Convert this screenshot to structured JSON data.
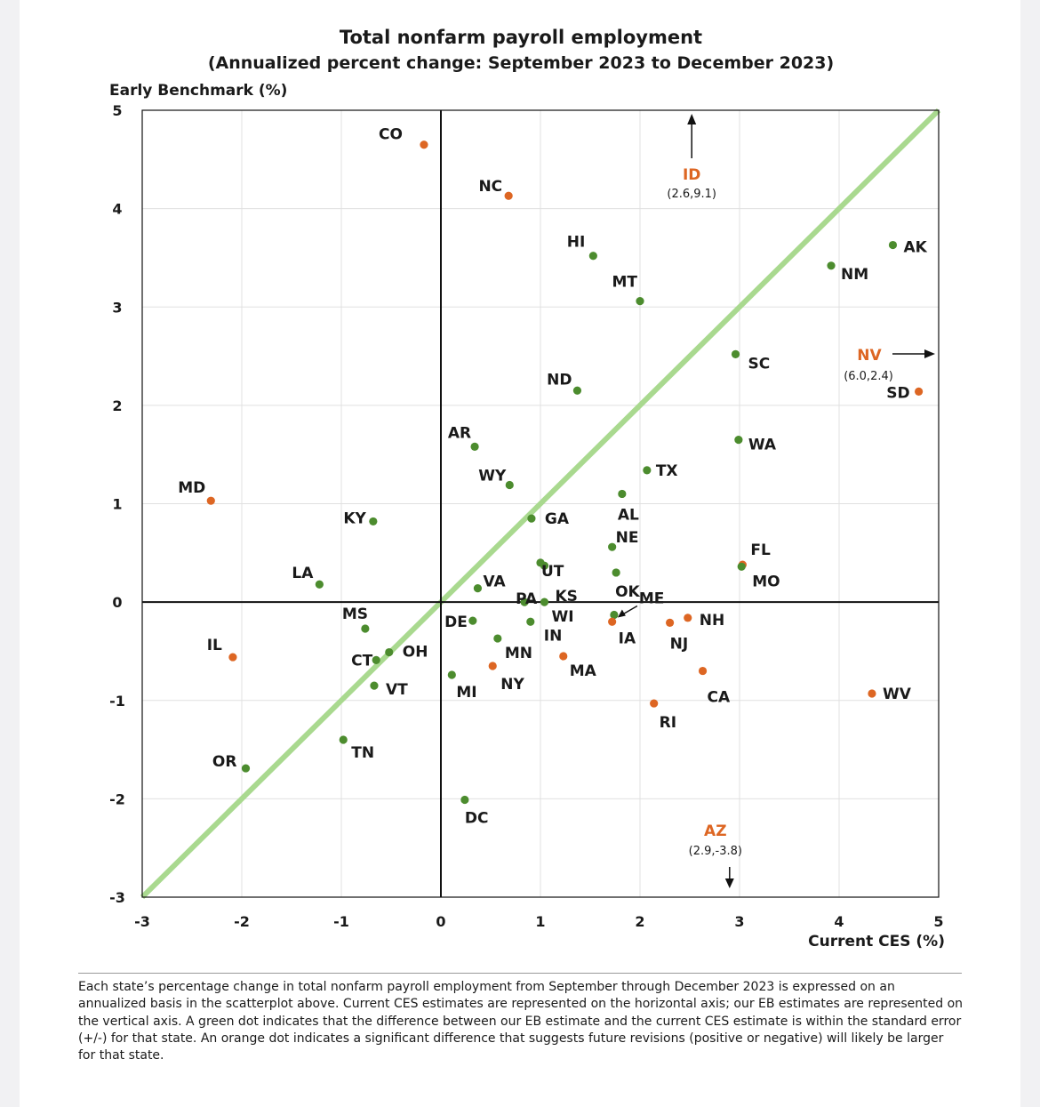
{
  "colors": {
    "green": "#4c8c2e",
    "orange": "#dd6623",
    "line45": "#a9d98f",
    "grid": "#e0e0e0",
    "axis": "#111111"
  },
  "chart_data": {
    "type": "scatter",
    "title": "Total nonfarm payroll employment",
    "subtitle": "(Annualized percent change: September 2023 to December 2023)",
    "xlabel": "Current CES (%)",
    "ylabel": "Early Benchmark (%)",
    "xlim": [
      -3,
      5
    ],
    "ylim": [
      -3,
      5
    ],
    "xticks": [
      "-3",
      "-2",
      "-1",
      "0",
      "1",
      "2",
      "3",
      "4",
      "5"
    ],
    "yticks": [
      "5",
      "4",
      "3",
      "2",
      "1",
      "0",
      "-1",
      "-2",
      "-3"
    ],
    "grid": true,
    "reference_line": "45-degree line (y = x)",
    "points": [
      {
        "label": "CO",
        "x": -0.17,
        "y": 4.65,
        "color": "orange"
      },
      {
        "label": "NC",
        "x": 0.68,
        "y": 4.13,
        "color": "orange"
      },
      {
        "label": "HI",
        "x": 1.53,
        "y": 3.52,
        "color": "green"
      },
      {
        "label": "MT",
        "x": 2.0,
        "y": 3.06,
        "color": "green"
      },
      {
        "label": "AK",
        "x": 4.54,
        "y": 3.63,
        "color": "green"
      },
      {
        "label": "NM",
        "x": 3.92,
        "y": 3.42,
        "color": "green"
      },
      {
        "label": "SC",
        "x": 2.96,
        "y": 2.52,
        "color": "green"
      },
      {
        "label": "SD",
        "x": 4.8,
        "y": 2.14,
        "color": "orange"
      },
      {
        "label": "ND",
        "x": 1.37,
        "y": 2.15,
        "color": "green"
      },
      {
        "label": "AR",
        "x": 0.34,
        "y": 1.58,
        "color": "green"
      },
      {
        "label": "WA",
        "x": 2.99,
        "y": 1.65,
        "color": "green"
      },
      {
        "label": "TX",
        "x": 2.07,
        "y": 1.34,
        "color": "green"
      },
      {
        "label": "WY",
        "x": 0.69,
        "y": 1.19,
        "color": "green"
      },
      {
        "label": "AL",
        "x": 1.82,
        "y": 1.1,
        "color": "green"
      },
      {
        "label": "MD",
        "x": -2.31,
        "y": 1.03,
        "color": "orange"
      },
      {
        "label": "GA",
        "x": 0.91,
        "y": 0.85,
        "color": "green"
      },
      {
        "label": "KY",
        "x": -0.68,
        "y": 0.82,
        "color": "green"
      },
      {
        "label": "NE",
        "x": 1.72,
        "y": 0.56,
        "color": "green"
      },
      {
        "label": "UT",
        "x": 1.0,
        "y": 0.4,
        "color": "green"
      },
      {
        "label": "KS",
        "x": 1.04,
        "y": 0.37,
        "color": "green"
      },
      {
        "label": "FL",
        "x": 3.03,
        "y": 0.38,
        "color": "orange"
      },
      {
        "label": "MO",
        "x": 3.02,
        "y": 0.36,
        "color": "green"
      },
      {
        "label": "OK",
        "x": 1.76,
        "y": 0.3,
        "color": "green"
      },
      {
        "label": "LA",
        "x": -1.22,
        "y": 0.18,
        "color": "green"
      },
      {
        "label": "VA",
        "x": 0.37,
        "y": 0.14,
        "color": "green"
      },
      {
        "label": "PA",
        "x": 0.84,
        "y": 0.0,
        "color": "green"
      },
      {
        "label": "WI",
        "x": 1.04,
        "y": 0.0,
        "color": "green"
      },
      {
        "label": "ME",
        "x": 1.74,
        "y": -0.13,
        "color": "green"
      },
      {
        "label": "IA",
        "x": 1.72,
        "y": -0.2,
        "color": "orange"
      },
      {
        "label": "DE",
        "x": 0.32,
        "y": -0.19,
        "color": "green"
      },
      {
        "label": "IN",
        "x": 0.9,
        "y": -0.2,
        "color": "green"
      },
      {
        "label": "NH",
        "x": 2.48,
        "y": -0.16,
        "color": "orange"
      },
      {
        "label": "NJ",
        "x": 2.3,
        "y": -0.21,
        "color": "orange"
      },
      {
        "label": "MS",
        "x": -0.76,
        "y": -0.27,
        "color": "green"
      },
      {
        "label": "MN",
        "x": 0.57,
        "y": -0.37,
        "color": "green"
      },
      {
        "label": "IL",
        "x": -2.09,
        "y": -0.56,
        "color": "orange"
      },
      {
        "label": "MA",
        "x": 1.23,
        "y": -0.55,
        "color": "orange"
      },
      {
        "label": "OH",
        "x": -0.52,
        "y": -0.51,
        "color": "green"
      },
      {
        "label": "CT",
        "x": -0.65,
        "y": -0.59,
        "color": "green"
      },
      {
        "label": "NY",
        "x": 0.52,
        "y": -0.65,
        "color": "orange"
      },
      {
        "label": "CA",
        "x": 2.63,
        "y": -0.7,
        "color": "orange"
      },
      {
        "label": "MI",
        "x": 0.11,
        "y": -0.74,
        "color": "green"
      },
      {
        "label": "VT",
        "x": -0.67,
        "y": -0.85,
        "color": "green"
      },
      {
        "label": "WV",
        "x": 4.33,
        "y": -0.93,
        "color": "orange"
      },
      {
        "label": "RI",
        "x": 2.14,
        "y": -1.03,
        "color": "orange"
      },
      {
        "label": "TN",
        "x": -0.98,
        "y": -1.4,
        "color": "green"
      },
      {
        "label": "OR",
        "x": -1.96,
        "y": -1.69,
        "color": "green"
      },
      {
        "label": "DC",
        "x": 0.24,
        "y": -2.01,
        "color": "green"
      }
    ],
    "offscale": [
      {
        "label": "ID",
        "coords": "(2.6,9.1)",
        "x": 2.6,
        "y": 9.1,
        "color": "orange",
        "direction": "up"
      },
      {
        "label": "NV",
        "coords": "(6.0,2.4)",
        "x": 6.0,
        "y": 2.4,
        "color": "orange",
        "direction": "right"
      },
      {
        "label": "AZ",
        "coords": "(2.9,-3.8)",
        "x": 2.9,
        "y": -3.8,
        "color": "orange",
        "direction": "down"
      }
    ]
  },
  "footnote": "Each state’s percentage change in total nonfarm payroll employment from September through December 2023 is expressed on an annualized basis in the scatterplot above. Current CES estimates are represented on the horizontal axis; our EB estimates are represented on the vertical axis. A green dot indicates that the difference between our EB estimate and the current CES estimate is within the standard error (+/-) for that state. An orange dot indicates a significant difference that suggests future revisions (positive or negative) will likely be larger for that state."
}
